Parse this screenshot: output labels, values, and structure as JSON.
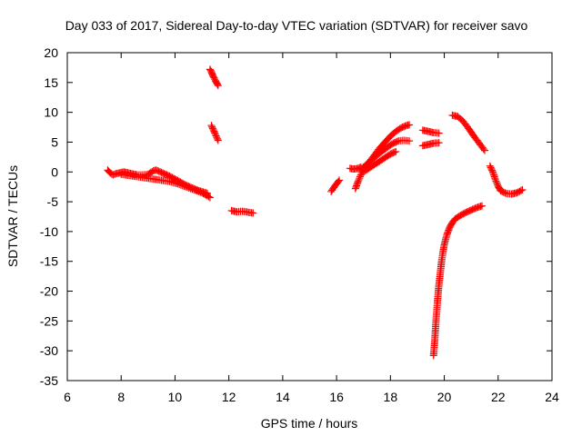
{
  "chart_data": {
    "type": "scatter",
    "title": "Day 033 of 2017, Sidereal Day-to-day VTEC variation (SDTVAR) for receiver savo",
    "xlabel": "GPS time / hours",
    "ylabel": "SDTVAR / TECUs",
    "xlim": [
      6,
      24
    ],
    "ylim": [
      -35,
      20
    ],
    "xticks": [
      "6",
      "8",
      "10",
      "12",
      "14",
      "16",
      "18",
      "20",
      "22",
      "24"
    ],
    "yticks": [
      "20",
      "15",
      "10",
      "5",
      "0",
      "-5",
      "-10",
      "-15",
      "-20",
      "-25",
      "-30",
      "-35"
    ],
    "grid": false,
    "marker": "plus",
    "color": "#ff0000",
    "segments": [
      {
        "x": [
          7.5,
          7.6,
          7.7,
          7.8,
          7.9,
          8.0,
          8.1,
          8.2,
          8.4,
          8.6,
          8.8,
          9.0,
          9.1,
          9.2,
          9.3,
          9.4,
          9.6,
          9.8,
          10.0,
          10.2,
          10.4,
          10.6,
          10.8,
          11.0,
          11.2
        ],
        "y": [
          0.3,
          -0.2,
          -0.5,
          -0.3,
          -0.2,
          -0.1,
          0.0,
          -0.1,
          -0.3,
          -0.5,
          -0.5,
          -0.4,
          -0.1,
          0.2,
          0.3,
          0.1,
          -0.3,
          -0.7,
          -1.2,
          -1.7,
          -2.2,
          -2.6,
          -3.0,
          -3.3,
          -3.6
        ]
      },
      {
        "x": [
          8.0,
          8.3,
          8.6,
          8.9,
          9.2,
          9.5,
          9.8,
          10.1,
          10.4,
          10.7,
          11.0,
          11.2,
          11.3
        ],
        "y": [
          -0.4,
          -0.6,
          -0.8,
          -1.0,
          -1.2,
          -1.4,
          -1.6,
          -2.0,
          -2.5,
          -3.0,
          -3.5,
          -4.0,
          -4.3
        ]
      },
      {
        "x": [
          11.3,
          11.35,
          11.4,
          11.45,
          11.5,
          11.55,
          11.6
        ],
        "y": [
          17.2,
          16.8,
          16.2,
          15.8,
          15.3,
          14.9,
          14.5
        ]
      },
      {
        "x": [
          11.35,
          11.4,
          11.45,
          11.5,
          11.55,
          11.6
        ],
        "y": [
          7.8,
          7.3,
          6.8,
          6.3,
          5.8,
          5.3
        ]
      },
      {
        "x": [
          12.1,
          12.3,
          12.5,
          12.9
        ],
        "y": [
          -6.5,
          -6.7,
          -6.6,
          -6.9
        ]
      },
      {
        "x": [
          15.8,
          15.9,
          16.0,
          16.1
        ],
        "y": [
          -3.3,
          -2.6,
          -2.0,
          -1.4
        ]
      },
      {
        "x": [
          16.5,
          16.6,
          16.7,
          16.8,
          16.9
        ],
        "y": [
          0.6,
          0.5,
          0.5,
          0.6,
          0.8
        ]
      },
      {
        "x": [
          16.7,
          16.8,
          16.9,
          17.0,
          17.2,
          17.4,
          17.6,
          17.8,
          18.0,
          18.2,
          18.4,
          18.6,
          18.7
        ],
        "y": [
          -2.8,
          -1.6,
          -0.5,
          0.5,
          1.6,
          2.8,
          4.0,
          5.0,
          6.0,
          6.8,
          7.4,
          7.8,
          7.9
        ]
      },
      {
        "x": [
          16.9,
          17.1,
          17.3,
          17.5,
          17.7,
          17.9,
          18.1,
          18.3,
          18.5,
          18.7
        ],
        "y": [
          0.4,
          1.2,
          2.0,
          2.8,
          3.5,
          4.2,
          4.8,
          5.2,
          5.3,
          5.2
        ]
      },
      {
        "x": [
          17.0,
          17.2,
          17.4,
          17.6,
          17.8,
          18.0,
          18.2
        ],
        "y": [
          0.0,
          0.6,
          1.2,
          1.8,
          2.4,
          3.0,
          3.4
        ]
      },
      {
        "x": [
          19.2,
          19.4,
          19.6,
          19.8
        ],
        "y": [
          7.0,
          6.8,
          6.6,
          6.5
        ]
      },
      {
        "x": [
          19.2,
          19.4,
          19.6,
          19.8
        ],
        "y": [
          4.4,
          4.6,
          4.8,
          4.9
        ]
      },
      {
        "x": [
          20.3,
          20.5,
          20.7,
          20.9,
          21.1,
          21.3,
          21.5
        ],
        "y": [
          9.5,
          9.3,
          8.5,
          7.3,
          6.0,
          4.8,
          3.6
        ]
      },
      {
        "x": [
          21.7,
          21.8,
          21.9,
          22.0,
          22.1,
          22.3,
          22.5,
          22.7,
          22.9
        ],
        "y": [
          1.0,
          0.0,
          -1.3,
          -2.4,
          -3.2,
          -3.6,
          -3.7,
          -3.5,
          -3.0
        ]
      },
      {
        "x": [
          19.6,
          19.65,
          19.7,
          19.75,
          19.8,
          19.85,
          19.9,
          19.95,
          20.0,
          20.1,
          20.2,
          20.3,
          20.4,
          20.6,
          20.8,
          21.0,
          21.2,
          21.4
        ],
        "y": [
          -30.8,
          -28.0,
          -24.5,
          -21.5,
          -19.0,
          -17.0,
          -15.0,
          -13.5,
          -12.2,
          -10.5,
          -9.3,
          -8.5,
          -7.9,
          -7.3,
          -6.8,
          -6.4,
          -6.0,
          -5.7
        ]
      }
    ]
  }
}
